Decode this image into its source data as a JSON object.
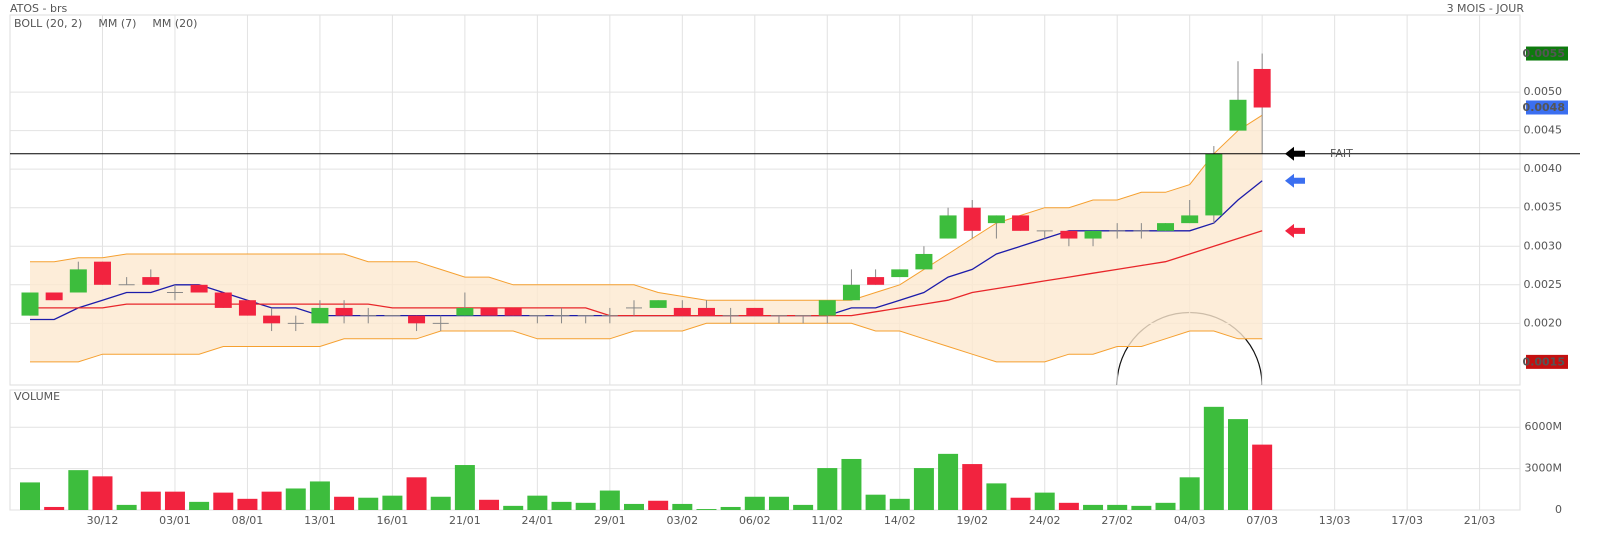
{
  "header": {
    "title": "ATOS - brs",
    "period": "3 MOIS - JOUR"
  },
  "chart_data": [
    {
      "type": "candlestick",
      "categories": [
        null,
        null,
        null,
        "30/12",
        null,
        null,
        "03/01",
        null,
        null,
        "08/01",
        null,
        null,
        "13/01",
        null,
        null,
        "16/01",
        null,
        null,
        "21/01",
        null,
        null,
        "24/01",
        null,
        null,
        "29/01",
        null,
        null,
        "03/02",
        null,
        null,
        "06/02",
        null,
        null,
        "11/02",
        null,
        null,
        "14/02",
        null,
        null,
        "19/02",
        null,
        null,
        "24/02",
        null,
        null,
        "27/02",
        null,
        null,
        "04/03",
        null,
        null,
        "07/03",
        null,
        null,
        "13/03",
        null,
        null,
        "17/03",
        null,
        null,
        "21/03",
        null
      ],
      "open": [
        0.0021,
        0.0024,
        0.0024,
        0.0028,
        0.0025,
        0.0026,
        0.0024,
        0.0025,
        0.0024,
        0.0023,
        0.0021,
        0.002,
        0.002,
        0.0022,
        0.0021,
        0.0021,
        0.0021,
        0.002,
        0.0021,
        0.0022,
        0.0022,
        0.0021,
        0.0021,
        0.0021,
        0.0021,
        0.0022,
        0.0022,
        0.0022,
        0.0022,
        0.0021,
        0.0022,
        0.0021,
        0.0021,
        0.0021,
        0.0023,
        0.0026,
        0.0026,
        0.0027,
        0.0031,
        0.0035,
        0.0033,
        0.0034,
        0.0032,
        0.0032,
        0.0031,
        0.0032,
        0.0032,
        0.0032,
        0.0033,
        0.0034,
        0.0045,
        0.0053,
        null,
        null,
        null,
        null,
        null,
        null,
        null,
        null,
        null,
        null
      ],
      "high": [
        0.0024,
        0.0024,
        0.0028,
        0.0028,
        0.0026,
        0.0027,
        0.0025,
        0.0025,
        0.0024,
        0.0023,
        0.0022,
        0.0021,
        0.0023,
        0.0023,
        0.0022,
        0.0021,
        0.0021,
        0.0021,
        0.0024,
        0.0022,
        0.0022,
        0.0021,
        0.0022,
        0.0021,
        0.0022,
        0.0023,
        0.0023,
        0.0023,
        0.0023,
        0.0022,
        0.0022,
        0.0021,
        0.0021,
        0.0023,
        0.0027,
        0.0027,
        0.0027,
        0.003,
        0.0035,
        0.0036,
        0.0034,
        0.0034,
        0.0032,
        0.0032,
        0.0032,
        0.0033,
        0.0033,
        0.0033,
        0.0036,
        0.0043,
        0.0054,
        0.0055,
        null,
        null,
        null,
        null,
        null,
        null,
        null,
        null,
        null,
        null
      ],
      "low": [
        0.0021,
        0.0023,
        0.0024,
        0.0025,
        0.0025,
        0.0025,
        0.0023,
        0.0024,
        0.0022,
        0.0021,
        0.0019,
        0.0019,
        0.002,
        0.002,
        0.002,
        0.0021,
        0.0019,
        0.0019,
        0.0021,
        0.0021,
        0.0021,
        0.002,
        0.002,
        0.002,
        0.002,
        0.0021,
        0.0022,
        0.0021,
        0.0021,
        0.002,
        0.0021,
        0.002,
        0.002,
        0.002,
        0.0023,
        0.0025,
        0.0026,
        0.0027,
        0.0031,
        0.0031,
        0.0031,
        0.0032,
        0.0031,
        0.003,
        0.003,
        0.0031,
        0.0031,
        0.0032,
        0.0033,
        0.0033,
        0.0045,
        0.0042,
        null,
        null,
        null,
        null,
        null,
        null,
        null,
        null,
        null,
        null
      ],
      "close": [
        0.0024,
        0.0023,
        0.0027,
        0.0025,
        0.0025,
        0.0025,
        0.0024,
        0.0024,
        0.0022,
        0.0021,
        0.002,
        0.002,
        0.0022,
        0.0021,
        0.0021,
        0.0021,
        0.002,
        0.002,
        0.0022,
        0.0021,
        0.0021,
        0.0021,
        0.0021,
        0.0021,
        0.0021,
        0.0022,
        0.0023,
        0.0021,
        0.0021,
        0.0021,
        0.0021,
        0.0021,
        0.0021,
        0.0023,
        0.0025,
        0.0025,
        0.0027,
        0.0029,
        0.0034,
        0.0032,
        0.0034,
        0.0032,
        0.0032,
        0.0031,
        0.0032,
        0.0032,
        0.0032,
        0.0033,
        0.0034,
        0.0042,
        0.0049,
        0.0048,
        null,
        null,
        null,
        null,
        null,
        null,
        null,
        null,
        null,
        null
      ],
      "up_color": "#3dbd3d",
      "down_color": "#f2233f",
      "series": [
        {
          "name": "BOLL (20, 2)",
          "color": "#f5a030",
          "fill": "#fde8cf",
          "upper": [
            0.0028,
            0.0028,
            0.00285,
            0.00285,
            0.0029,
            0.0029,
            0.0029,
            0.0029,
            0.0029,
            0.0029,
            0.0029,
            0.0029,
            0.0029,
            0.0029,
            0.0028,
            0.0028,
            0.0028,
            0.0027,
            0.0026,
            0.0026,
            0.0025,
            0.0025,
            0.0025,
            0.0025,
            0.0025,
            0.0025,
            0.0024,
            0.00235,
            0.0023,
            0.0023,
            0.0023,
            0.0023,
            0.0023,
            0.0023,
            0.0023,
            0.0024,
            0.0025,
            0.0027,
            0.0029,
            0.0031,
            0.0033,
            0.0034,
            0.0035,
            0.0035,
            0.0036,
            0.0036,
            0.0037,
            0.0037,
            0.0038,
            0.0042,
            0.0045,
            0.0047,
            null,
            null,
            null,
            null,
            null,
            null,
            null,
            null,
            null,
            null
          ],
          "lower": [
            0.0015,
            0.0015,
            0.0015,
            0.0016,
            0.0016,
            0.0016,
            0.0016,
            0.0016,
            0.0017,
            0.0017,
            0.0017,
            0.0017,
            0.0017,
            0.0018,
            0.0018,
            0.0018,
            0.0018,
            0.0019,
            0.0019,
            0.0019,
            0.0019,
            0.0018,
            0.0018,
            0.0018,
            0.0018,
            0.0019,
            0.0019,
            0.0019,
            0.002,
            0.002,
            0.002,
            0.002,
            0.002,
            0.002,
            0.002,
            0.0019,
            0.0019,
            0.0018,
            0.0017,
            0.0016,
            0.0015,
            0.0015,
            0.0015,
            0.0016,
            0.0016,
            0.0017,
            0.0017,
            0.0018,
            0.0019,
            0.0019,
            0.0018,
            0.0018,
            null,
            null,
            null,
            null,
            null,
            null,
            null,
            null,
            null,
            null
          ]
        },
        {
          "name": "MM (7)",
          "color": "#1c1caa",
          "values": [
            0.00205,
            0.00205,
            0.0022,
            0.0023,
            0.0024,
            0.0024,
            0.0025,
            0.0025,
            0.0024,
            0.0023,
            0.0022,
            0.0022,
            0.0021,
            0.0021,
            0.0021,
            0.0021,
            0.0021,
            0.0021,
            0.0021,
            0.0021,
            0.0021,
            0.0021,
            0.0021,
            0.0021,
            0.0021,
            0.0021,
            0.0021,
            0.0021,
            0.0021,
            0.0021,
            0.0021,
            0.0021,
            0.0021,
            0.0021,
            0.0022,
            0.0022,
            0.0023,
            0.0024,
            0.0026,
            0.0027,
            0.0029,
            0.003,
            0.0031,
            0.0032,
            0.0032,
            0.0032,
            0.0032,
            0.0032,
            0.0032,
            0.0033,
            0.0036,
            0.00385,
            null,
            null,
            null,
            null,
            null,
            null,
            null,
            null,
            null,
            null
          ]
        },
        {
          "name": "MM (20)",
          "color": "#e8262a",
          "values": [
            0.0022,
            0.0022,
            0.0022,
            0.0022,
            0.00225,
            0.00225,
            0.00225,
            0.00225,
            0.00225,
            0.00225,
            0.00225,
            0.00225,
            0.00225,
            0.00225,
            0.00225,
            0.0022,
            0.0022,
            0.0022,
            0.0022,
            0.0022,
            0.0022,
            0.0022,
            0.0022,
            0.0022,
            0.0021,
            0.0021,
            0.0021,
            0.0021,
            0.0021,
            0.0021,
            0.0021,
            0.0021,
            0.0021,
            0.0021,
            0.0021,
            0.00215,
            0.0022,
            0.00225,
            0.0023,
            0.0024,
            0.00245,
            0.0025,
            0.00255,
            0.0026,
            0.00265,
            0.0027,
            0.00275,
            0.0028,
            0.0029,
            0.003,
            0.0031,
            0.0032,
            null,
            null,
            null,
            null,
            null,
            null,
            null,
            null,
            null,
            null
          ]
        }
      ],
      "ylim": [
        0.0012,
        0.006
      ],
      "yticks": [
        {
          "value": 0.002,
          "label": "0.0020"
        },
        {
          "value": 0.0025,
          "label": "0.0025"
        },
        {
          "value": 0.003,
          "label": "0.0030"
        },
        {
          "value": 0.0035,
          "label": "0.0035"
        },
        {
          "value": 0.004,
          "label": "0.0040"
        },
        {
          "value": 0.0045,
          "label": "0.0045"
        },
        {
          "value": 0.005,
          "label": "0.0050"
        }
      ],
      "markers": [
        {
          "value": 0.0055,
          "color": "#0e7a0e"
        },
        {
          "value": 0.0048,
          "color": "#3b6ff0"
        },
        {
          "value": 0.0015,
          "color": "#c41010"
        }
      ],
      "hline": {
        "value": 0.0042,
        "label": "FAIT"
      },
      "grid": true
    },
    {
      "type": "bar",
      "title": "VOLUME",
      "title_color": "#2eaa2e",
      "values": [
        2000,
        220,
        2890,
        2440,
        370,
        1330,
        1330,
        590,
        1260,
        810,
        1330,
        1560,
        2070,
        960,
        890,
        1040,
        2370,
        960,
        3260,
        740,
        300,
        1040,
        590,
        520,
        1410,
        440,
        670,
        440,
        70,
        220,
        960,
        960,
        370,
        3040,
        3700,
        1110,
        810,
        3040,
        4070,
        3330,
        1930,
        890,
        1260,
        520,
        370,
        370,
        300,
        520,
        2370,
        7480,
        6590,
        4740,
        null,
        null,
        null,
        null,
        null,
        null,
        null,
        null,
        null,
        null
      ],
      "colors": [
        "#3dbd3d",
        "#f2233f",
        "#3dbd3d",
        "#f2233f",
        "#3dbd3d",
        "#f2233f",
        "#f2233f",
        "#3dbd3d",
        "#f2233f",
        "#f2233f",
        "#f2233f",
        "#3dbd3d",
        "#3dbd3d",
        "#f2233f",
        "#3dbd3d",
        "#3dbd3d",
        "#f2233f",
        "#3dbd3d",
        "#3dbd3d",
        "#f2233f",
        "#3dbd3d",
        "#3dbd3d",
        "#3dbd3d",
        "#3dbd3d",
        "#3dbd3d",
        "#3dbd3d",
        "#f2233f",
        "#3dbd3d",
        "#3dbd3d",
        "#3dbd3d",
        "#3dbd3d",
        "#3dbd3d",
        "#3dbd3d",
        "#3dbd3d",
        "#3dbd3d",
        "#3dbd3d",
        "#3dbd3d",
        "#3dbd3d",
        "#3dbd3d",
        "#f2233f",
        "#3dbd3d",
        "#f2233f",
        "#3dbd3d",
        "#f2233f",
        "#3dbd3d",
        "#3dbd3d",
        "#3dbd3d",
        "#3dbd3d",
        "#3dbd3d",
        "#3dbd3d",
        "#3dbd3d",
        "#f2233f",
        null,
        null,
        null,
        null,
        null,
        null,
        null,
        null,
        null,
        null
      ],
      "ylim": [
        0,
        8700
      ],
      "yticks": [
        0,
        {
          "value": 3000,
          "label": "3000M"
        },
        {
          "value": 6000,
          "label": "6000M"
        }
      ],
      "grid": true
    }
  ]
}
